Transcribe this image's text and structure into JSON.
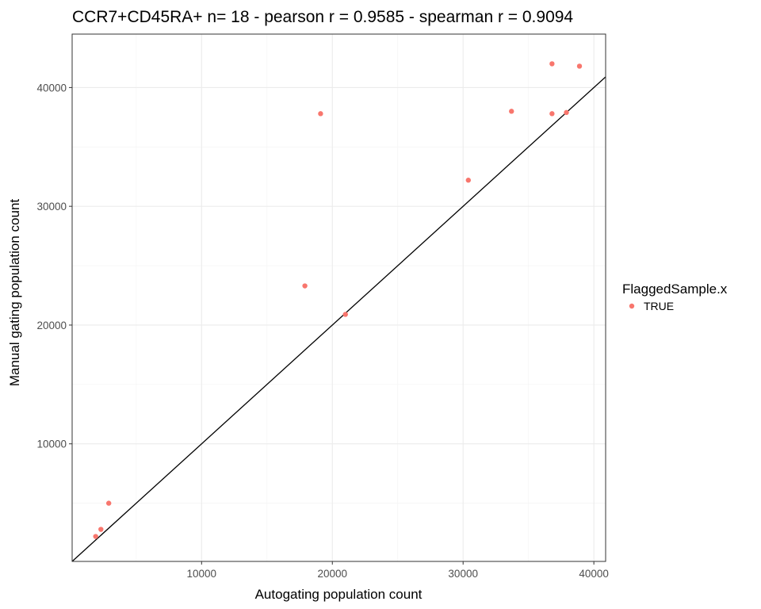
{
  "chart_data": {
    "type": "scatter",
    "title": "CCR7+CD45RA+ n= 18 - pearson r = 0.9585 - spearman r = 0.9094",
    "xlabel": "Autogating population count",
    "ylabel": "Manual gating population count",
    "xlim": [
      100,
      40900
    ],
    "ylim": [
      100,
      44500
    ],
    "x_ticks": [
      10000,
      20000,
      30000,
      40000
    ],
    "y_ticks": [
      10000,
      20000,
      30000,
      40000
    ],
    "x_tick_labels": [
      "10000",
      "20000",
      "30000",
      "40000"
    ],
    "y_tick_labels": [
      "10000",
      "20000",
      "30000",
      "40000"
    ],
    "grid": true,
    "reference_line": "y = x",
    "legend": {
      "title": "FlaggedSample.x",
      "placement": "right",
      "entries": [
        {
          "label": "TRUE",
          "color": "#F8766D"
        }
      ]
    },
    "series": [
      {
        "name": "TRUE",
        "color": "#F8766D",
        "points": [
          {
            "x": 1900,
            "y": 2200
          },
          {
            "x": 2300,
            "y": 2800
          },
          {
            "x": 2900,
            "y": 5000
          },
          {
            "x": 17900,
            "y": 23300
          },
          {
            "x": 19100,
            "y": 37800
          },
          {
            "x": 21000,
            "y": 20900
          },
          {
            "x": 30400,
            "y": 32200
          },
          {
            "x": 33700,
            "y": 38000
          },
          {
            "x": 36800,
            "y": 37800
          },
          {
            "x": 36800,
            "y": 42000
          },
          {
            "x": 37900,
            "y": 37900
          },
          {
            "x": 38900,
            "y": 41800
          }
        ]
      }
    ]
  }
}
